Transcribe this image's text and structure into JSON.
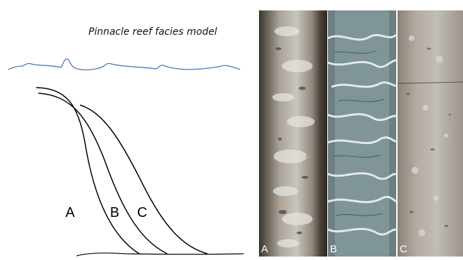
{
  "diagram": {
    "title": "Pinnacle reef facies model",
    "facies_labels": [
      "A",
      "B",
      "C"
    ],
    "sea_color": "#4a76b5",
    "curve_color": "#000000"
  },
  "cores": [
    {
      "label": "A",
      "texture": "dark rubbly reef limestone"
    },
    {
      "label": "B",
      "texture": "blue-grey laminated with white veins"
    },
    {
      "label": "C",
      "texture": "greyish-tan bioclastic limestone"
    }
  ]
}
